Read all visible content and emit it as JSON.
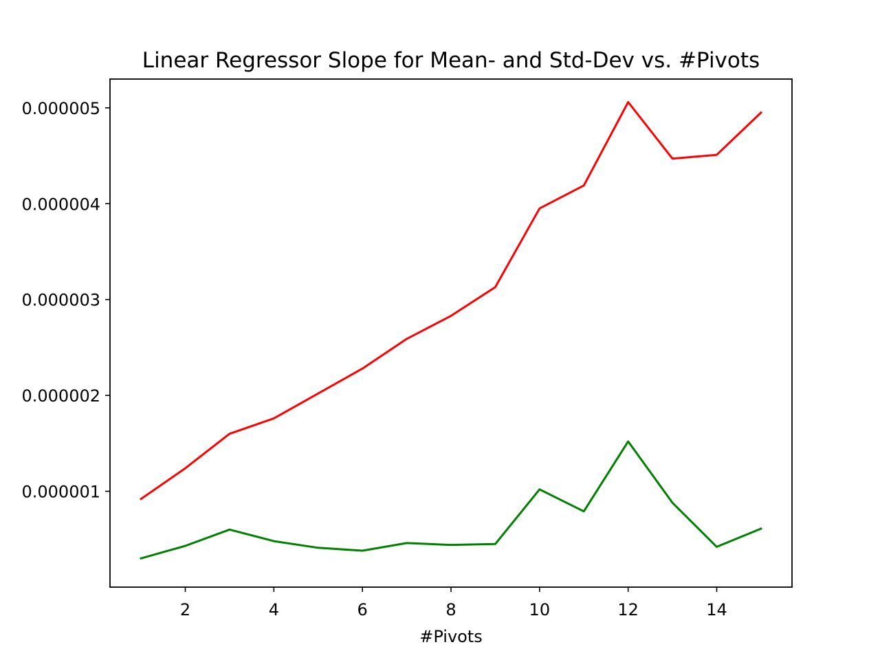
{
  "chart_data": {
    "type": "line",
    "title": "Linear Regressor Slope for Mean- and Std-Dev vs. #Pivots",
    "xlabel": "#Pivots",
    "ylabel": "",
    "x": [
      1,
      2,
      3,
      4,
      5,
      6,
      7,
      8,
      9,
      10,
      11,
      12,
      13,
      14,
      15
    ],
    "xlim": [
      0.3,
      15.7
    ],
    "ylim": [
      0.0,
      5.3e-06
    ],
    "xticks": [
      2,
      4,
      6,
      8,
      10,
      12,
      14
    ],
    "xtick_labels": [
      "2",
      "4",
      "6",
      "8",
      "10",
      "12",
      "14"
    ],
    "yticks": [
      1e-06,
      2e-06,
      3e-06,
      4e-06,
      5e-06
    ],
    "ytick_labels": [
      "0.000001",
      "0.000002",
      "0.000003",
      "0.000004",
      "0.000005"
    ],
    "grid": false,
    "legend": null,
    "series": [
      {
        "color": "#ff0000",
        "values": [
          9.2e-07,
          1.24e-06,
          1.6e-06,
          1.76e-06,
          2.02e-06,
          2.28e-06,
          2.59e-06,
          2.83e-06,
          3.13e-06,
          3.95e-06,
          4.19e-06,
          5.06e-06,
          4.47e-06,
          4.51e-06,
          4.95e-06
        ]
      },
      {
        "color": "#008000",
        "values": [
          3e-07,
          4.3e-07,
          6e-07,
          4.8e-07,
          4.1e-07,
          3.8e-07,
          4.6e-07,
          4.4e-07,
          4.5e-07,
          1.02e-06,
          7.9e-07,
          1.52e-06,
          8.8e-07,
          4.2e-07,
          6.1e-07
        ]
      }
    ]
  }
}
